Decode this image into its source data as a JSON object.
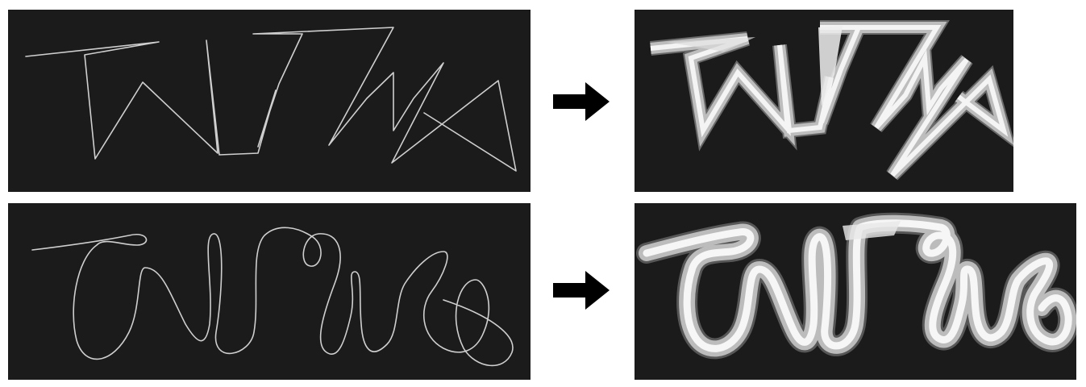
{
  "figure": {
    "rows": [
      {
        "input_panel": {
          "icon": "angular-stroke-sketch",
          "color": "#cfcfcf"
        },
        "arrow": {
          "icon": "right-arrow-icon",
          "color": "#000000"
        },
        "output_panel": {
          "icon": "angular-3d-ribbon-render",
          "color": "#f4f4f4"
        }
      },
      {
        "input_panel": {
          "icon": "curvy-stroke-sketch",
          "color": "#cfcfcf"
        },
        "arrow": {
          "icon": "right-arrow-icon",
          "color": "#000000"
        },
        "output_panel": {
          "icon": "curvy-3d-ribbon-render",
          "color": "#f6f6f6"
        }
      }
    ],
    "panel_background": "#1b1b1b",
    "page_background": "#ffffff"
  }
}
